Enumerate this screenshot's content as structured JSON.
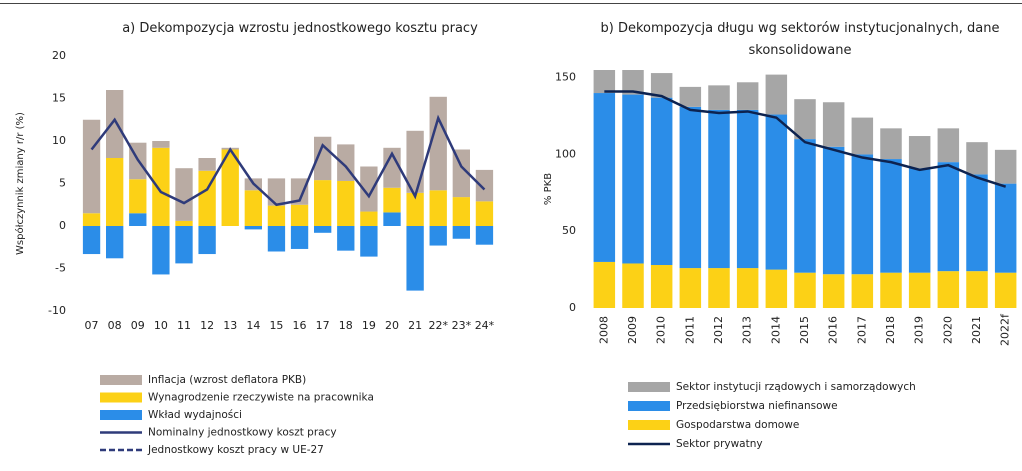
{
  "chart_data": [
    {
      "type": "bar",
      "title": "a) Dekompozycja wzrostu jednostkowego kosztu pracy",
      "y_label": "Współczynnik zmiany r/r (%)",
      "categories": [
        "07",
        "08",
        "09",
        "10",
        "11",
        "12",
        "13",
        "14",
        "15",
        "16",
        "17",
        "18",
        "19",
        "20",
        "21",
        "22*",
        "23*",
        "24*"
      ],
      "ylim": [
        -10,
        20
      ],
      "yticks": [
        -10,
        -5,
        0,
        5,
        10,
        15,
        20
      ],
      "series": [
        {
          "name": "Inflacja (wzrost deflatora PKB)",
          "type": "bar",
          "color": "#b9aba3",
          "values": [
            11,
            8,
            4.3,
            0.8,
            6.2,
            1.5,
            0.2,
            1.4,
            3.2,
            3.1,
            5.1,
            4.3,
            5.3,
            4.7,
            7.3,
            11,
            5.6,
            3.7
          ]
        },
        {
          "name": "Wynagrodzenie rzeczywiste na pracownika",
          "type": "bar",
          "color": "#fcd116",
          "values": [
            1.5,
            8,
            4,
            9.2,
            0.6,
            6.5,
            9,
            4.2,
            2.4,
            2.5,
            5.4,
            5.3,
            1.7,
            2.9,
            3.9,
            4.2,
            3.4,
            2.9
          ]
        },
        {
          "name": "Wkład wydajności",
          "type": "bar",
          "color": "#2b8de8",
          "values": [
            -3.3,
            -3.8,
            1.5,
            -5.7,
            -4.4,
            -3.3,
            0,
            -0.4,
            -3,
            -2.7,
            -0.8,
            -2.9,
            -3.6,
            1.6,
            -7.6,
            -2.3,
            -1.5,
            -2.2
          ]
        },
        {
          "name": "Nominalny jednostkowy koszt pracy",
          "type": "line",
          "color": "#2f3b7a",
          "values": [
            9,
            12.5,
            7.8,
            4,
            2.7,
            4.3,
            9,
            5,
            2.5,
            3,
            9.5,
            7,
            3.5,
            8.5,
            3.5,
            12.7,
            7,
            4.3
          ]
        },
        {
          "name": "Jednostkowy koszt pracy w UE-27",
          "type": "line",
          "dash": true,
          "color": "#2f3b7a",
          "values": [
            null,
            null,
            null,
            null,
            null,
            null,
            null,
            null,
            null,
            null,
            null,
            null,
            null,
            null,
            null,
            null,
            null,
            null
          ]
        }
      ]
    },
    {
      "type": "bar",
      "title": "b) Dekompozycja długu wg sektorów instytucjonalnych, dane skonsolidowane",
      "y_label": "% PKB",
      "categories": [
        "2008",
        "2009",
        "2010",
        "2011",
        "2012",
        "2013",
        "2014",
        "2015",
        "2016",
        "2017",
        "2018",
        "2019",
        "2020",
        "2021",
        "2022f"
      ],
      "ylim": [
        0,
        155
      ],
      "yticks": [
        0,
        50,
        100,
        150
      ],
      "series": [
        {
          "name": "Sektor instytucji rządowych i samorządowych",
          "type": "bar",
          "color": "#a6a6a6",
          "values": [
            15,
            16,
            16,
            13,
            16,
            18,
            26,
            26,
            29,
            24,
            20,
            21,
            22,
            21,
            22
          ]
        },
        {
          "name": "Przedsiębiorstwa niefinansowe",
          "type": "bar",
          "color": "#2b8de8",
          "values": [
            110,
            110,
            109,
            105,
            103,
            103,
            101,
            87,
            83,
            78,
            74,
            68,
            71,
            63,
            58
          ]
        },
        {
          "name": "Gospodarstwa domowe",
          "type": "bar",
          "color": "#fcd116",
          "values": [
            30,
            29,
            28,
            26,
            26,
            26,
            25,
            23,
            22,
            22,
            23,
            23,
            24,
            24,
            23
          ]
        },
        {
          "name": "Sektor prywatny",
          "type": "line",
          "color": "#0d2350",
          "values": [
            141,
            141,
            138,
            129,
            127,
            128,
            124,
            108,
            103,
            98,
            95,
            90,
            93,
            85,
            79
          ]
        }
      ]
    }
  ]
}
